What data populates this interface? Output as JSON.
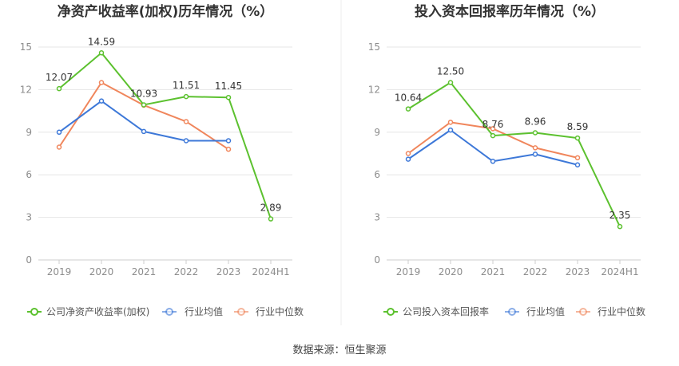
{
  "source_label": "数据来源：恒生聚源",
  "colors": {
    "company": "#5cc12f",
    "average": "#3d78d8",
    "median": "#f0865c"
  },
  "chart_data": [
    {
      "type": "line",
      "title": "净资产收益率(加权)历年情况（%）",
      "categories": [
        "2019",
        "2020",
        "2021",
        "2022",
        "2023",
        "2024H1"
      ],
      "ylim": [
        0,
        15
      ],
      "yticks": [
        0,
        3,
        6,
        9,
        12,
        15
      ],
      "grid": true,
      "legend_position": "bottom",
      "series": [
        {
          "name": "公司净资产收益率(加权)",
          "key": "company",
          "values": [
            12.07,
            14.59,
            10.93,
            11.51,
            11.45,
            2.89
          ],
          "labels": [
            "12.07",
            "14.59",
            "10.93",
            "11.51",
            "11.45",
            "2.89"
          ]
        },
        {
          "name": "行业均值",
          "key": "average",
          "values": [
            9.0,
            11.2,
            9.05,
            8.4,
            8.4,
            null
          ]
        },
        {
          "name": "行业中位数",
          "key": "median",
          "values": [
            7.95,
            12.5,
            10.9,
            9.75,
            7.8,
            null
          ]
        }
      ]
    },
    {
      "type": "line",
      "title": "投入资本回报率历年情况（%）",
      "categories": [
        "2019",
        "2020",
        "2021",
        "2022",
        "2023",
        "2024H1"
      ],
      "ylim": [
        0,
        15
      ],
      "yticks": [
        0,
        3,
        6,
        9,
        12,
        15
      ],
      "grid": true,
      "legend_position": "bottom",
      "series": [
        {
          "name": "公司投入资本回报率",
          "key": "company",
          "values": [
            10.64,
            12.5,
            8.76,
            8.96,
            8.59,
            2.35
          ],
          "labels": [
            "10.64",
            "12.50",
            "8.76",
            "8.96",
            "8.59",
            "2.35"
          ]
        },
        {
          "name": "行业均值",
          "key": "average",
          "values": [
            7.1,
            9.15,
            6.95,
            7.45,
            6.7,
            null
          ]
        },
        {
          "name": "行业中位数",
          "key": "median",
          "values": [
            7.5,
            9.7,
            9.25,
            7.9,
            7.2,
            null
          ]
        }
      ]
    }
  ]
}
